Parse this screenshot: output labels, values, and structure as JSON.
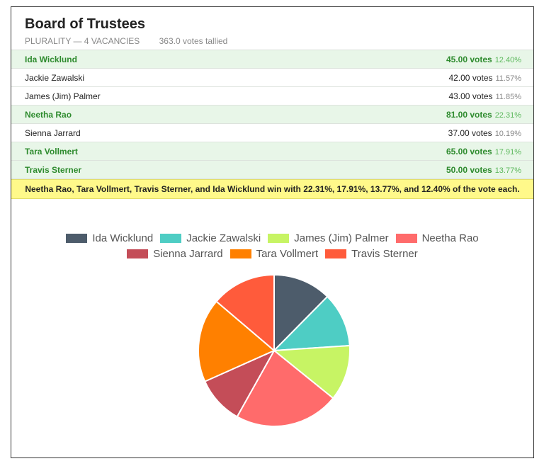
{
  "race": {
    "title": "Board of Trustees",
    "method": "PLURALITY — 4 VACANCIES",
    "tally": "363.0 votes tallied"
  },
  "candidates": [
    {
      "name": "Ida Wicklund",
      "votes": "45.00 votes",
      "percent": "12.40%",
      "winner": true
    },
    {
      "name": "Jackie Zawalski",
      "votes": "42.00 votes",
      "percent": "11.57%",
      "winner": false
    },
    {
      "name": "James (Jim) Palmer",
      "votes": "43.00 votes",
      "percent": "11.85%",
      "winner": false
    },
    {
      "name": "Neetha Rao",
      "votes": "81.00 votes",
      "percent": "22.31%",
      "winner": true
    },
    {
      "name": "Sienna Jarrard",
      "votes": "37.00 votes",
      "percent": "10.19%",
      "winner": false
    },
    {
      "name": "Tara Vollmert",
      "votes": "65.00 votes",
      "percent": "17.91%",
      "winner": true
    },
    {
      "name": "Travis Sterner",
      "votes": "50.00 votes",
      "percent": "13.77%",
      "winner": true
    }
  ],
  "summary": "Neetha Rao, Tara Vollmert, Travis Sterner, and Ida Wicklund win with 22.31%, 17.91%, 13.77%, and 12.40% of the vote each.",
  "chart_data": {
    "type": "pie",
    "categories": [
      "Ida Wicklund",
      "Jackie Zawalski",
      "James (Jim) Palmer",
      "Neetha Rao",
      "Sienna Jarrard",
      "Tara Vollmert",
      "Travis Sterner"
    ],
    "values": [
      45,
      42,
      43,
      81,
      37,
      65,
      50
    ],
    "colors": [
      "#4d5c6b",
      "#4ecdc4",
      "#c7f464",
      "#ff6b6b",
      "#c44d58",
      "#ff8000",
      "#ff5b3b"
    ],
    "legend_position": "top"
  }
}
